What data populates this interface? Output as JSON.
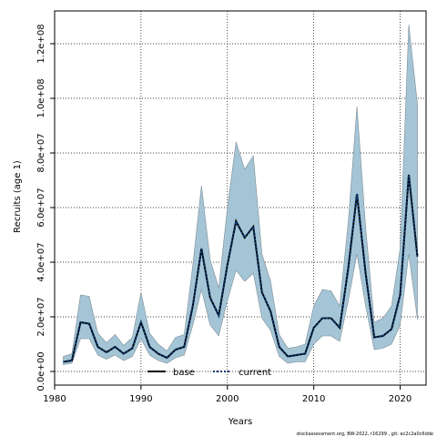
{
  "chart_data": {
    "type": "line",
    "xlabel": "Years",
    "ylabel": "Recruits (age 1)",
    "xlim": [
      1980,
      2023
    ],
    "ylim": [
      -5000000,
      132000000
    ],
    "x_ticks": [
      1980,
      1990,
      2000,
      2010,
      2020
    ],
    "y_ticks": [
      0,
      20000000,
      40000000,
      60000000,
      80000000,
      100000000,
      120000000
    ],
    "y_tick_labels": [
      "0.0e+00",
      "2.0e+07",
      "4.0e+07",
      "6.0e+07",
      "8.0e+07",
      "1.0e+08",
      "1.2e+08"
    ],
    "grid": true,
    "legend_position": "bottom-center",
    "x": [
      1981,
      1982,
      1983,
      1984,
      1985,
      1986,
      1987,
      1988,
      1989,
      1990,
      1991,
      1992,
      1993,
      1994,
      1995,
      1996,
      1997,
      1998,
      1999,
      2000,
      2001,
      2002,
      2003,
      2004,
      2005,
      2006,
      2007,
      2008,
      2009,
      2010,
      2011,
      2012,
      2013,
      2014,
      2015,
      2016,
      2017,
      2018,
      2019,
      2020,
      2021,
      2022
    ],
    "series": [
      {
        "name": "base",
        "style": "solid",
        "color": "#000000",
        "values": [
          3500000,
          4000000,
          18000000,
          17500000,
          9000000,
          7000000,
          9000000,
          6500000,
          8500000,
          18000000,
          9000000,
          6500000,
          5000000,
          8000000,
          9000000,
          24000000,
          45000000,
          27000000,
          20500000,
          39000000,
          55000000,
          49000000,
          53000000,
          29000000,
          22000000,
          9000000,
          5500000,
          6000000,
          6500000,
          16000000,
          19500000,
          19500000,
          16000000,
          38000000,
          65000000,
          36000000,
          12500000,
          13000000,
          15500000,
          28000000,
          72000000,
          42000000
        ]
      },
      {
        "name": "current",
        "style": "dotted",
        "color": "#0b3d7a",
        "values": [
          3500000,
          4000000,
          18000000,
          17500000,
          9000000,
          7000000,
          9000000,
          6500000,
          8500000,
          18000000,
          9000000,
          6500000,
          5000000,
          8000000,
          9000000,
          24000000,
          45000000,
          27000000,
          20500000,
          39000000,
          55000000,
          49000000,
          53000000,
          29000000,
          22000000,
          9000000,
          5500000,
          6000000,
          6500000,
          16000000,
          19500000,
          19500000,
          16000000,
          38000000,
          65000000,
          36000000,
          12500000,
          13000000,
          15500000,
          28000000,
          72000000,
          42000000
        ]
      }
    ],
    "ci_band": {
      "color": "#a4c5d6",
      "lower": [
        2500000,
        3000000,
        12000000,
        12000000,
        6000000,
        4500000,
        6000000,
        4000000,
        5500000,
        12000000,
        6000000,
        4000000,
        3000000,
        5000000,
        6000000,
        17000000,
        30000000,
        17000000,
        13000000,
        26000000,
        37000000,
        33000000,
        36000000,
        19500000,
        15000000,
        5500000,
        3000000,
        3500000,
        3500000,
        10000000,
        13000000,
        13000000,
        11000000,
        26000000,
        43000000,
        24000000,
        8000000,
        8500000,
        10000000,
        17000000,
        43000000,
        19000000
      ],
      "upper": [
        5500000,
        6500000,
        28000000,
        27500000,
        14000000,
        10500000,
        13500000,
        9500000,
        12500000,
        29000000,
        14000000,
        10000000,
        7500000,
        12500000,
        13500000,
        39000000,
        68000000,
        41000000,
        30500000,
        60000000,
        84000000,
        74000000,
        79000000,
        43000000,
        33000000,
        13500000,
        8500000,
        9000000,
        10000000,
        24000000,
        30000000,
        29500000,
        24000000,
        55000000,
        97000000,
        53000000,
        18000000,
        19500000,
        24000000,
        45000000,
        127000000,
        98000000
      ]
    },
    "footnote": "stockassessment.org, BW-2022, r16299 , git: ec2c2a0c6dde"
  }
}
